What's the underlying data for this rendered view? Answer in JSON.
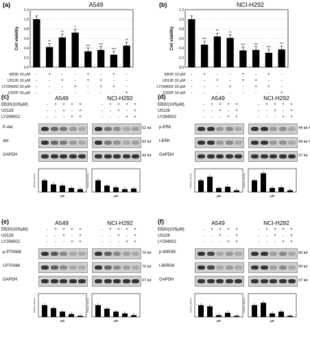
{
  "panels": {
    "a": {
      "label": "(a)",
      "title": "A549",
      "ylabel": "Cell viability",
      "ticks": [
        "0.0",
        "0.2",
        "0.4",
        "0.6",
        "0.8",
        "1.0",
        "1.2"
      ],
      "values": [
        1.0,
        0.42,
        0.62,
        0.72,
        0.33,
        0.36,
        0.26,
        0.45
      ],
      "sig": [
        "",
        "**",
        "**",
        "*",
        "***",
        "***",
        "***",
        "**"
      ]
    },
    "b": {
      "label": "(b)",
      "title": "NCI-H292",
      "ylabel": "Cell viability",
      "ticks": [
        "0.0",
        "0.2",
        "0.4",
        "0.6",
        "0.8",
        "1.0",
        "1.2"
      ],
      "values": [
        1.0,
        0.47,
        0.64,
        0.61,
        0.35,
        0.36,
        0.3,
        0.37
      ],
      "sig": [
        "",
        "***",
        "**",
        "**",
        "***",
        "***",
        "***",
        "***"
      ]
    },
    "c": {
      "label": "(c)",
      "cell1": "A549",
      "cell2": "NCI-H292",
      "bands": [
        {
          "name": "P-Akt",
          "kd": "62 kd"
        },
        {
          "name": "Akt",
          "kd": "62 kd"
        },
        {
          "name": "GAPDH",
          "kd": "43 kd"
        }
      ],
      "bars1": [
        1.0,
        0.65,
        0.55,
        0.35,
        0.25
      ],
      "bars2": [
        1.0,
        0.55,
        0.4,
        0.25,
        0.3
      ],
      "unit": "μM",
      "ylab": "Relative density"
    },
    "d": {
      "label": "(d)",
      "cell1": "A549",
      "cell2": "NCI-H292",
      "bands": [
        {
          "name": "p-ERK",
          "kd": "44 kd 42 kd"
        },
        {
          "name": "t-ERK",
          "kd": "44 kd 42 kd"
        },
        {
          "name": "GAPDH",
          "kd": "37 kd"
        }
      ],
      "bars1": [
        1.0,
        1.3,
        0.35,
        0.45,
        0.15
      ],
      "bars2": [
        1.0,
        1.6,
        0.35,
        0.4,
        0.15
      ],
      "unit": "μM",
      "ylab": "Relative density"
    },
    "e": {
      "label": "(e)",
      "cell1": "A549",
      "cell2": "NCI-H292",
      "bands": [
        {
          "name": "p-P70S6K",
          "kd": "70 kd"
        },
        {
          "name": "t-P70S6K",
          "kd": "70 kd"
        },
        {
          "name": "GAPDH",
          "kd": "37 kd"
        }
      ],
      "bars1": [
        1.0,
        0.75,
        0.45,
        0.25,
        0.1
      ],
      "bars2": [
        1.0,
        0.7,
        0.45,
        0.3,
        0.15
      ],
      "unit": "μM",
      "ylab": "Relative density"
    },
    "f": {
      "label": "(f)",
      "cell1": "A549",
      "cell2": "NCI-H292",
      "bands": [
        {
          "name": "p-90RSK",
          "kd": "90 kd"
        },
        {
          "name": "t-90RSK",
          "kd": "90 kd"
        },
        {
          "name": "GAPDH",
          "kd": "37 kd"
        }
      ],
      "bars1": [
        1.0,
        0.9,
        0.15,
        0.35,
        0.1
      ],
      "bars2": [
        1.0,
        1.2,
        0.3,
        0.45,
        0.1
      ],
      "unit": "μM",
      "ylab": "Relative density"
    }
  },
  "treatments_ab": {
    "rows": [
      "EB30 10 μM",
      "U0126 10 μM",
      "LY294002 20 μM",
      "CDDP 20 μM"
    ],
    "rows_b": [
      "EB30 10 μM",
      "U0126 10 μM",
      "LY294002 20 μM",
      "CDDP 10 μM"
    ],
    "signs": [
      [
        "-",
        "+",
        "-",
        "-",
        "+",
        "-",
        "+",
        "-"
      ],
      [
        "-",
        "-",
        "+",
        "-",
        "+",
        "+",
        "-",
        "-"
      ],
      [
        "-",
        "-",
        "-",
        "+",
        "-",
        "+",
        "+",
        "-"
      ],
      [
        "-",
        "-",
        "-",
        "-",
        "-",
        "-",
        "-",
        "+"
      ]
    ]
  },
  "treatments_wb": {
    "rows": [
      "EB30(10/5μM)",
      "U0126",
      "LY294002"
    ],
    "signs": [
      [
        "-",
        "+",
        "+",
        "+",
        "+"
      ],
      [
        "-",
        "-",
        "+",
        "-",
        "+"
      ],
      [
        "-",
        "-",
        "-",
        "+",
        "+"
      ]
    ]
  },
  "chart_data": [
    {
      "type": "bar",
      "title": "A549",
      "ylabel": "Cell viability",
      "ylim": [
        0,
        1.2
      ],
      "categories": [
        "1",
        "2",
        "3",
        "4",
        "5",
        "6",
        "7",
        "8"
      ],
      "values": [
        1.0,
        0.42,
        0.62,
        0.72,
        0.33,
        0.36,
        0.26,
        0.45
      ]
    },
    {
      "type": "bar",
      "title": "NCI-H292",
      "ylabel": "Cell viability",
      "ylim": [
        0,
        1.2
      ],
      "categories": [
        "1",
        "2",
        "3",
        "4",
        "5",
        "6",
        "7",
        "8"
      ],
      "values": [
        1.0,
        0.47,
        0.64,
        0.61,
        0.35,
        0.36,
        0.3,
        0.37
      ]
    }
  ]
}
